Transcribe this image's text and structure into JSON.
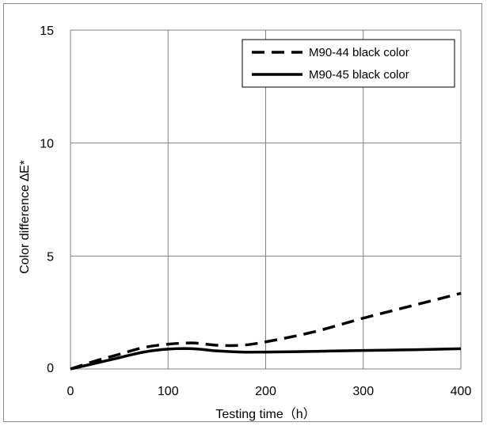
{
  "chart_data": {
    "type": "line",
    "title": "",
    "xlabel": "Testing time（h）",
    "ylabel": "Color difference ∆E*",
    "xlim": [
      0,
      400
    ],
    "ylim": [
      0,
      15
    ],
    "x_ticks": [
      "0",
      "100",
      "200",
      "300",
      "400"
    ],
    "y_ticks": [
      "0",
      "5",
      "10",
      "15"
    ],
    "grid": true,
    "legend_position": "top-right",
    "series": [
      {
        "name": "M90-44 black color",
        "style": "dashed",
        "color": "#000000",
        "x": [
          0,
          25,
          50,
          75,
          100,
          125,
          150,
          175,
          200,
          250,
          300,
          350,
          400
        ],
        "y": [
          0,
          0.35,
          0.65,
          0.95,
          1.1,
          1.15,
          1.05,
          1.05,
          1.2,
          1.65,
          2.25,
          2.8,
          3.35
        ]
      },
      {
        "name": "M90-45 black color",
        "style": "solid",
        "color": "#000000",
        "x": [
          0,
          25,
          50,
          75,
          100,
          125,
          150,
          175,
          200,
          250,
          300,
          350,
          400
        ],
        "y": [
          0,
          0.25,
          0.5,
          0.75,
          0.88,
          0.9,
          0.8,
          0.75,
          0.75,
          0.78,
          0.82,
          0.85,
          0.9
        ]
      }
    ]
  }
}
